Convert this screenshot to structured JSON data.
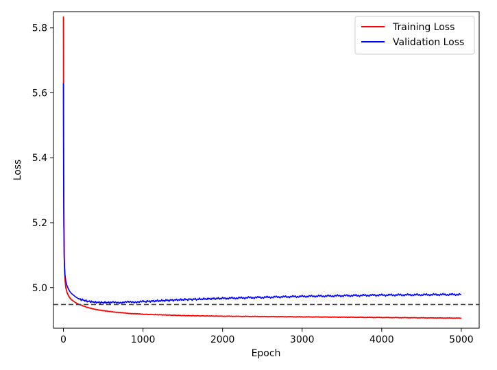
{
  "chart_data": {
    "type": "line",
    "xlabel": "Epoch",
    "ylabel": "Loss",
    "xlim": [
      -125,
      5225
    ],
    "ylim": [
      4.875,
      5.85
    ],
    "xticks": [
      0,
      1000,
      2000,
      3000,
      4000,
      5000
    ],
    "xtick_labels": [
      "0",
      "1000",
      "2000",
      "3000",
      "4000",
      "5000"
    ],
    "yticks": [
      5.0,
      5.2,
      5.4,
      5.6,
      5.8
    ],
    "ytick_labels": [
      "5.0",
      "5.2",
      "5.4",
      "5.6",
      "5.8"
    ],
    "grid": false,
    "legend_position": "top-right",
    "reference_line": {
      "y": 4.948,
      "style": "dashed",
      "color": "#404040"
    },
    "series": [
      {
        "name": "Training Loss",
        "color": "#ff0000",
        "x": [
          0,
          2,
          5,
          10,
          15,
          20,
          30,
          40,
          50,
          75,
          100,
          150,
          200,
          300,
          400,
          500,
          600,
          800,
          1000,
          1250,
          1500,
          1750,
          2000,
          2500,
          3000,
          3500,
          4000,
          4500,
          5000
        ],
        "y": [
          5.835,
          5.5,
          5.26,
          5.1,
          5.05,
          5.025,
          5.0,
          4.99,
          4.982,
          4.97,
          4.963,
          4.954,
          4.948,
          4.939,
          4.933,
          4.929,
          4.926,
          4.921,
          4.918,
          4.916,
          4.914,
          4.913,
          4.912,
          4.911,
          4.91,
          4.909,
          4.908,
          4.907,
          4.906
        ]
      },
      {
        "name": "Validation Loss",
        "color": "#0000ff",
        "x": [
          0,
          2,
          5,
          10,
          15,
          20,
          30,
          40,
          50,
          75,
          100,
          150,
          200,
          300,
          400,
          500,
          600,
          800,
          1000,
          1250,
          1500,
          1750,
          2000,
          2500,
          3000,
          3500,
          4000,
          4500,
          5000
        ],
        "y": [
          5.63,
          5.35,
          5.2,
          5.09,
          5.06,
          5.04,
          5.02,
          5.01,
          5.003,
          4.99,
          4.982,
          4.972,
          4.965,
          4.958,
          4.955,
          4.954,
          4.954,
          4.955,
          4.957,
          4.96,
          4.963,
          4.965,
          4.967,
          4.97,
          4.973,
          4.975,
          4.977,
          4.978,
          4.979
        ]
      }
    ]
  }
}
